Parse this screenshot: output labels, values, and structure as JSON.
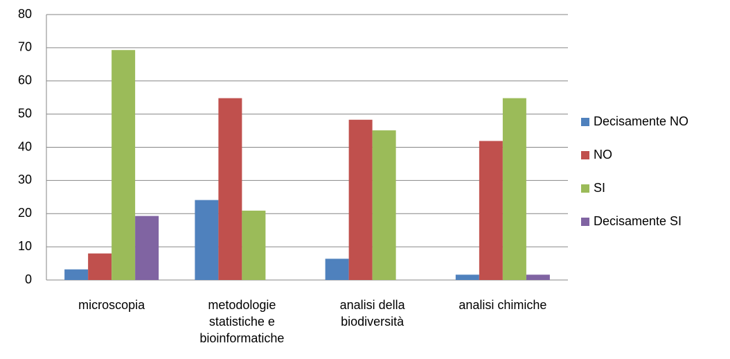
{
  "chart_data": {
    "type": "bar",
    "categories": [
      "microscopia",
      "metodologie statistiche e bioinformatiche",
      "analisi della biodiversità",
      "analisi chimiche"
    ],
    "series": [
      {
        "name": "Decisamente NO",
        "color": "#4f81bd",
        "values": [
          3.2,
          24.1,
          6.4,
          1.6
        ]
      },
      {
        "name": "NO",
        "color": "#c0504d",
        "values": [
          8,
          54.8,
          48.3,
          41.9
        ]
      },
      {
        "name": "SI",
        "color": "#9bbb59",
        "values": [
          69.3,
          20.9,
          45.1,
          54.8
        ]
      },
      {
        "name": "Decisamente SI",
        "color": "#8064a2",
        "values": [
          19.3,
          0,
          0,
          1.6
        ]
      }
    ],
    "ylim": [
      0,
      80
    ],
    "yticks": [
      0,
      10,
      20,
      30,
      40,
      50,
      60,
      70,
      80
    ],
    "grid": true,
    "legend": "right"
  }
}
